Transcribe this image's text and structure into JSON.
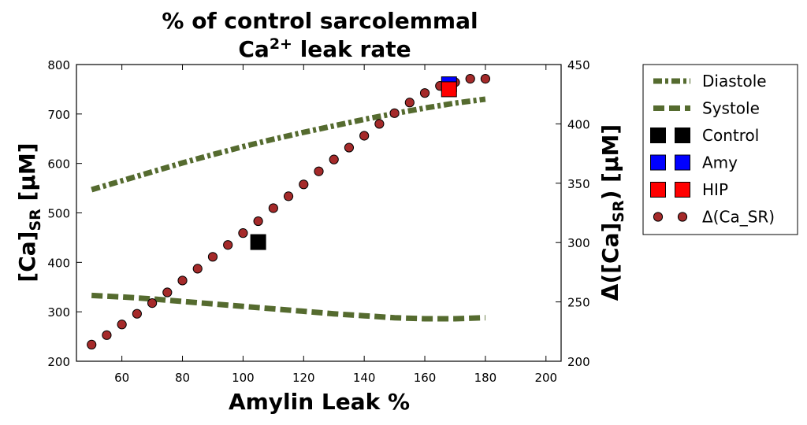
{
  "chart_data": {
    "type": "line",
    "title_line1": "% of control sarcolemmal",
    "title_line2_base": "Ca",
    "title_line2_sup": "2+",
    "title_line2_rest": " leak rate",
    "xlabel": "Amylin Leak %",
    "ylabel_left_base": "[Ca]",
    "ylabel_left_sub": "SR",
    "ylabel_left_unit": " [μM]",
    "ylabel_right_prefix": "Δ([Ca]",
    "ylabel_right_sub": "SR",
    "ylabel_right_suffix": ") [μM]",
    "xlim": [
      45,
      205
    ],
    "ylim_left": [
      200,
      800
    ],
    "ylim_right": [
      200,
      450
    ],
    "xticks": [
      60,
      80,
      100,
      120,
      140,
      160,
      180,
      200
    ],
    "yticks_left": [
      200,
      300,
      400,
      500,
      600,
      700,
      800
    ],
    "yticks_right": [
      200,
      250,
      300,
      350,
      400,
      450
    ],
    "series": [
      {
        "name": "Diastole",
        "axis": "left",
        "style": "dashdot",
        "color": "#556b2f",
        "x": [
          50,
          60,
          70,
          80,
          90,
          100,
          110,
          120,
          130,
          140,
          150,
          160,
          170,
          180
        ],
        "values": [
          547,
          565,
          583,
          601,
          618,
          634,
          649,
          663,
          676,
          689,
          701,
          712,
          722,
          730
        ]
      },
      {
        "name": "Systole",
        "axis": "left",
        "style": "dashed",
        "color": "#556b2f",
        "x": [
          50,
          60,
          70,
          80,
          90,
          100,
          110,
          120,
          130,
          140,
          150,
          160,
          170,
          180
        ],
        "values": [
          333,
          330,
          326,
          321,
          316,
          311,
          306,
          301,
          296,
          292,
          288,
          286,
          286,
          288
        ]
      },
      {
        "name": "Control",
        "axis": "left",
        "style": "square",
        "color": "#000000",
        "x": [
          105
        ],
        "values": [
          441
        ]
      },
      {
        "name": "Amy",
        "axis": "left",
        "style": "square",
        "color": "#0000ff",
        "x": [
          168
        ],
        "values": [
          760
        ]
      },
      {
        "name": "HIP",
        "axis": "left",
        "style": "square",
        "color": "#ff0000",
        "x": [
          168
        ],
        "values": [
          750
        ]
      },
      {
        "name": "Δ(Ca_SR)",
        "axis": "right",
        "style": "circle",
        "color": "#a52a2a",
        "x": [
          50,
          55,
          60,
          65,
          70,
          75,
          80,
          85,
          90,
          95,
          100,
          105,
          110,
          115,
          120,
          125,
          130,
          135,
          140,
          145,
          150,
          155,
          160,
          165,
          170,
          175,
          180
        ],
        "values": [
          214,
          222,
          231,
          240,
          249,
          258,
          268,
          278,
          288,
          298,
          308,
          318,
          329,
          339,
          349,
          360,
          370,
          380,
          390,
          400,
          409,
          418,
          426,
          432,
          435,
          438,
          438
        ]
      }
    ]
  }
}
